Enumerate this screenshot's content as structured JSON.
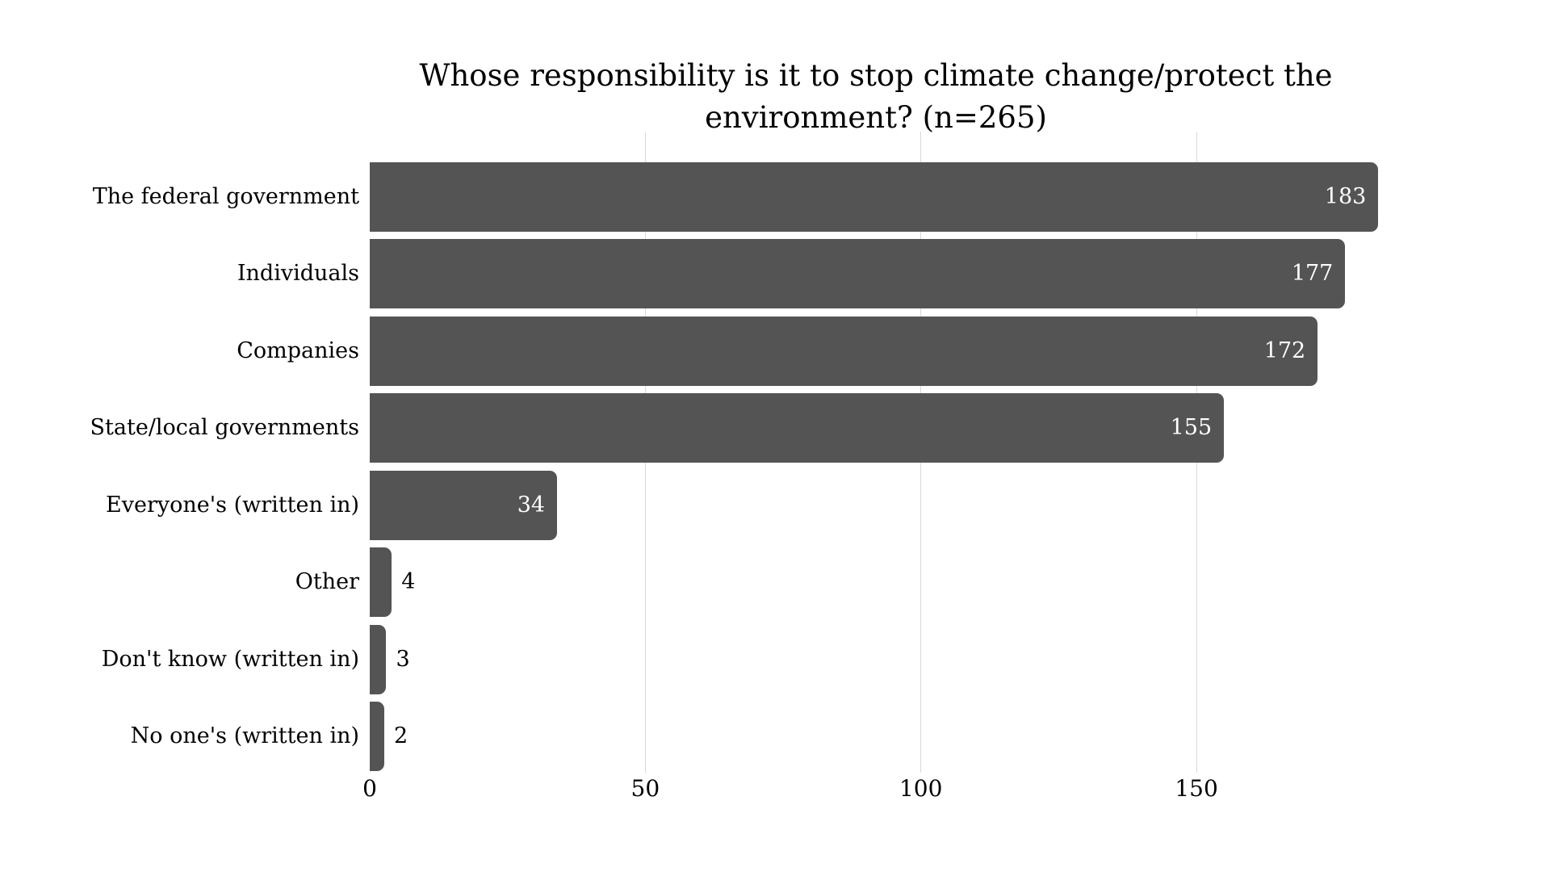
{
  "chart_data": {
    "type": "bar",
    "orientation": "horizontal",
    "title": "Whose responsibility is it to stop climate change/protect the environment? (n=265)",
    "title_lines": [
      "Whose responsibility is it to stop climate change/protect the",
      "environment? (n=265)"
    ],
    "categories": [
      "The federal government",
      "Individuals",
      "Companies",
      "State/local governments",
      "Everyone's (written in)",
      "Other",
      "Don't know (written in)",
      "No one's (written in)"
    ],
    "values": [
      183,
      177,
      172,
      155,
      34,
      4,
      3,
      2
    ],
    "xlabel": "",
    "ylabel": "",
    "xticks": [
      0,
      50,
      100,
      150
    ],
    "xlim": [
      0,
      187
    ],
    "grid": "vertical-gridlines-at-50-100-150",
    "legend": "none",
    "value_labels": "end-of-bar, white inside for large bars, black outside for small bars",
    "colors": {
      "bar": "#545454",
      "gridline": "#d9d9d9",
      "value_inside": "#ffffff",
      "value_outside": "#000000",
      "text": "#000000",
      "background": "#ffffff"
    }
  }
}
